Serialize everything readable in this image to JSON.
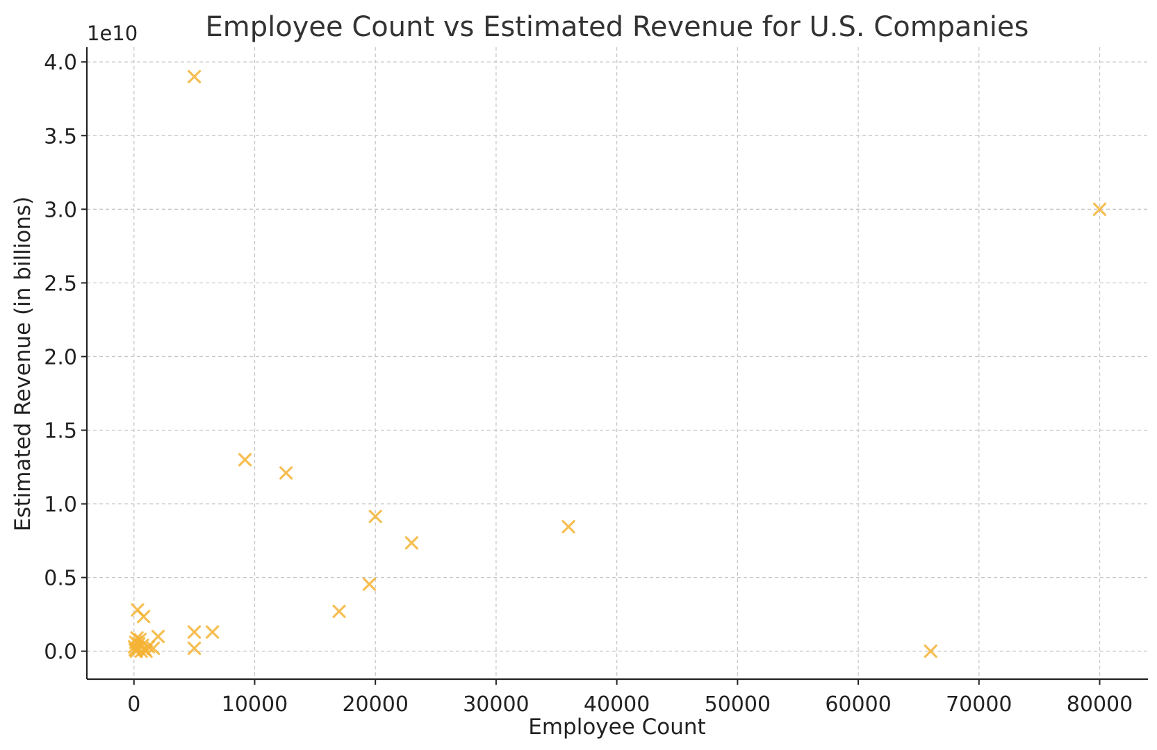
{
  "chart_data": {
    "type": "scatter",
    "title": "Employee Count vs Estimated Revenue for U.S. Companies",
    "xlabel": "Employee Count",
    "ylabel": "Estimated Revenue (in billions)",
    "y_offset_label": "1e10",
    "xlim": [
      -3900,
      84000
    ],
    "ylim": [
      -0.19,
      4.1
    ],
    "y_scale_factor": 10000000000,
    "x_ticks": [
      0,
      10000,
      20000,
      30000,
      40000,
      50000,
      60000,
      70000,
      80000
    ],
    "x_tick_labels": [
      "0",
      "10000",
      "20000",
      "30000",
      "40000",
      "50000",
      "60000",
      "70000",
      "80000"
    ],
    "y_ticks": [
      0.0,
      0.5,
      1.0,
      1.5,
      2.0,
      2.5,
      3.0,
      3.5,
      4.0
    ],
    "y_tick_labels": [
      "0.0",
      "0.5",
      "1.0",
      "1.5",
      "2.0",
      "2.5",
      "3.0",
      "3.5",
      "4.0"
    ],
    "grid": true,
    "marker": "x",
    "marker_color": "#F5B335",
    "points": [
      {
        "x": 5000,
        "y": 3.9
      },
      {
        "x": 80000,
        "y": 3.0
      },
      {
        "x": 9200,
        "y": 1.3
      },
      {
        "x": 12600,
        "y": 1.21
      },
      {
        "x": 20000,
        "y": 0.915
      },
      {
        "x": 23000,
        "y": 0.735
      },
      {
        "x": 36000,
        "y": 0.845
      },
      {
        "x": 19500,
        "y": 0.455
      },
      {
        "x": 17000,
        "y": 0.27
      },
      {
        "x": 66000,
        "y": 0.0
      },
      {
        "x": 5000,
        "y": 0.13
      },
      {
        "x": 6500,
        "y": 0.13
      },
      {
        "x": 5000,
        "y": 0.02
      },
      {
        "x": 300,
        "y": 0.28
      },
      {
        "x": 800,
        "y": 0.235
      },
      {
        "x": 2000,
        "y": 0.1
      },
      {
        "x": 1600,
        "y": 0.02
      },
      {
        "x": 1200,
        "y": 0.03
      },
      {
        "x": 900,
        "y": 0.01
      },
      {
        "x": 700,
        "y": 0.04
      },
      {
        "x": 500,
        "y": 0.08
      },
      {
        "x": 400,
        "y": 0.05
      },
      {
        "x": 300,
        "y": 0.02
      },
      {
        "x": 200,
        "y": 0.0
      },
      {
        "x": 100,
        "y": 0.01
      },
      {
        "x": 50,
        "y": 0.03
      },
      {
        "x": 600,
        "y": 0.0
      },
      {
        "x": 1000,
        "y": 0.0
      },
      {
        "x": 150,
        "y": 0.06
      },
      {
        "x": 250,
        "y": 0.09
      }
    ]
  }
}
